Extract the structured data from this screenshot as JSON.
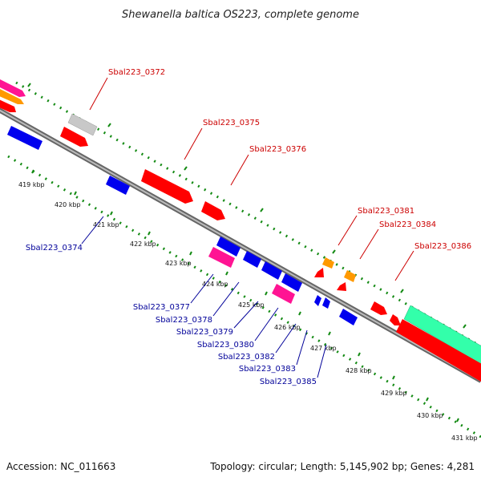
{
  "title": "Shewanella baltica OS223, complete genome",
  "footer": {
    "accession": "Accession: NC_011663",
    "summary": "Topology: circular; Length: 5,145,902 bp; Genes: 4,281"
  },
  "colors": {
    "backbone": "#888888",
    "ticks": "#138a13",
    "red": "#ff0000",
    "blue": "#0000ee",
    "magenta": "#ff1493",
    "orange": "#ff9900",
    "gray": "#c8c8c8",
    "teal": "#33ffaa",
    "label_red": "#cc0000",
    "label_blue": "#000099"
  },
  "kbp_ticks": [
    {
      "label": "419 kbp",
      "pos": 10
    },
    {
      "label": "420 kbp",
      "pos": 80
    },
    {
      "label": "421 kbp",
      "pos": 150
    },
    {
      "label": "422 kbp",
      "pos": 220
    },
    {
      "label": "423 kbp",
      "pos": 290
    },
    {
      "label": "424 kbp",
      "pos": 355
    },
    {
      "label": "425 kbp",
      "pos": 420
    },
    {
      "label": "426 kbp",
      "pos": 483
    },
    {
      "label": "427 kbp",
      "pos": 546
    },
    {
      "label": "428 kbp",
      "pos": 610
    },
    {
      "label": "429 kbp",
      "pos": 675
    },
    {
      "label": "430 kbp",
      "pos": 740
    },
    {
      "label": "431 kbp",
      "pos": 805
    }
  ],
  "gene_labels": {
    "red": [
      "Sbal223_0372",
      "Sbal223_0375",
      "Sbal223_0376",
      "Sbal223_0381",
      "Sbal223_0384",
      "Sbal223_0386"
    ],
    "blue": [
      "Sbal223_0374",
      "Sbal223_0377",
      "Sbal223_0378",
      "Sbal223_0379",
      "Sbal223_0380",
      "Sbal223_0382",
      "Sbal223_0383",
      "Sbal223_0385"
    ]
  }
}
